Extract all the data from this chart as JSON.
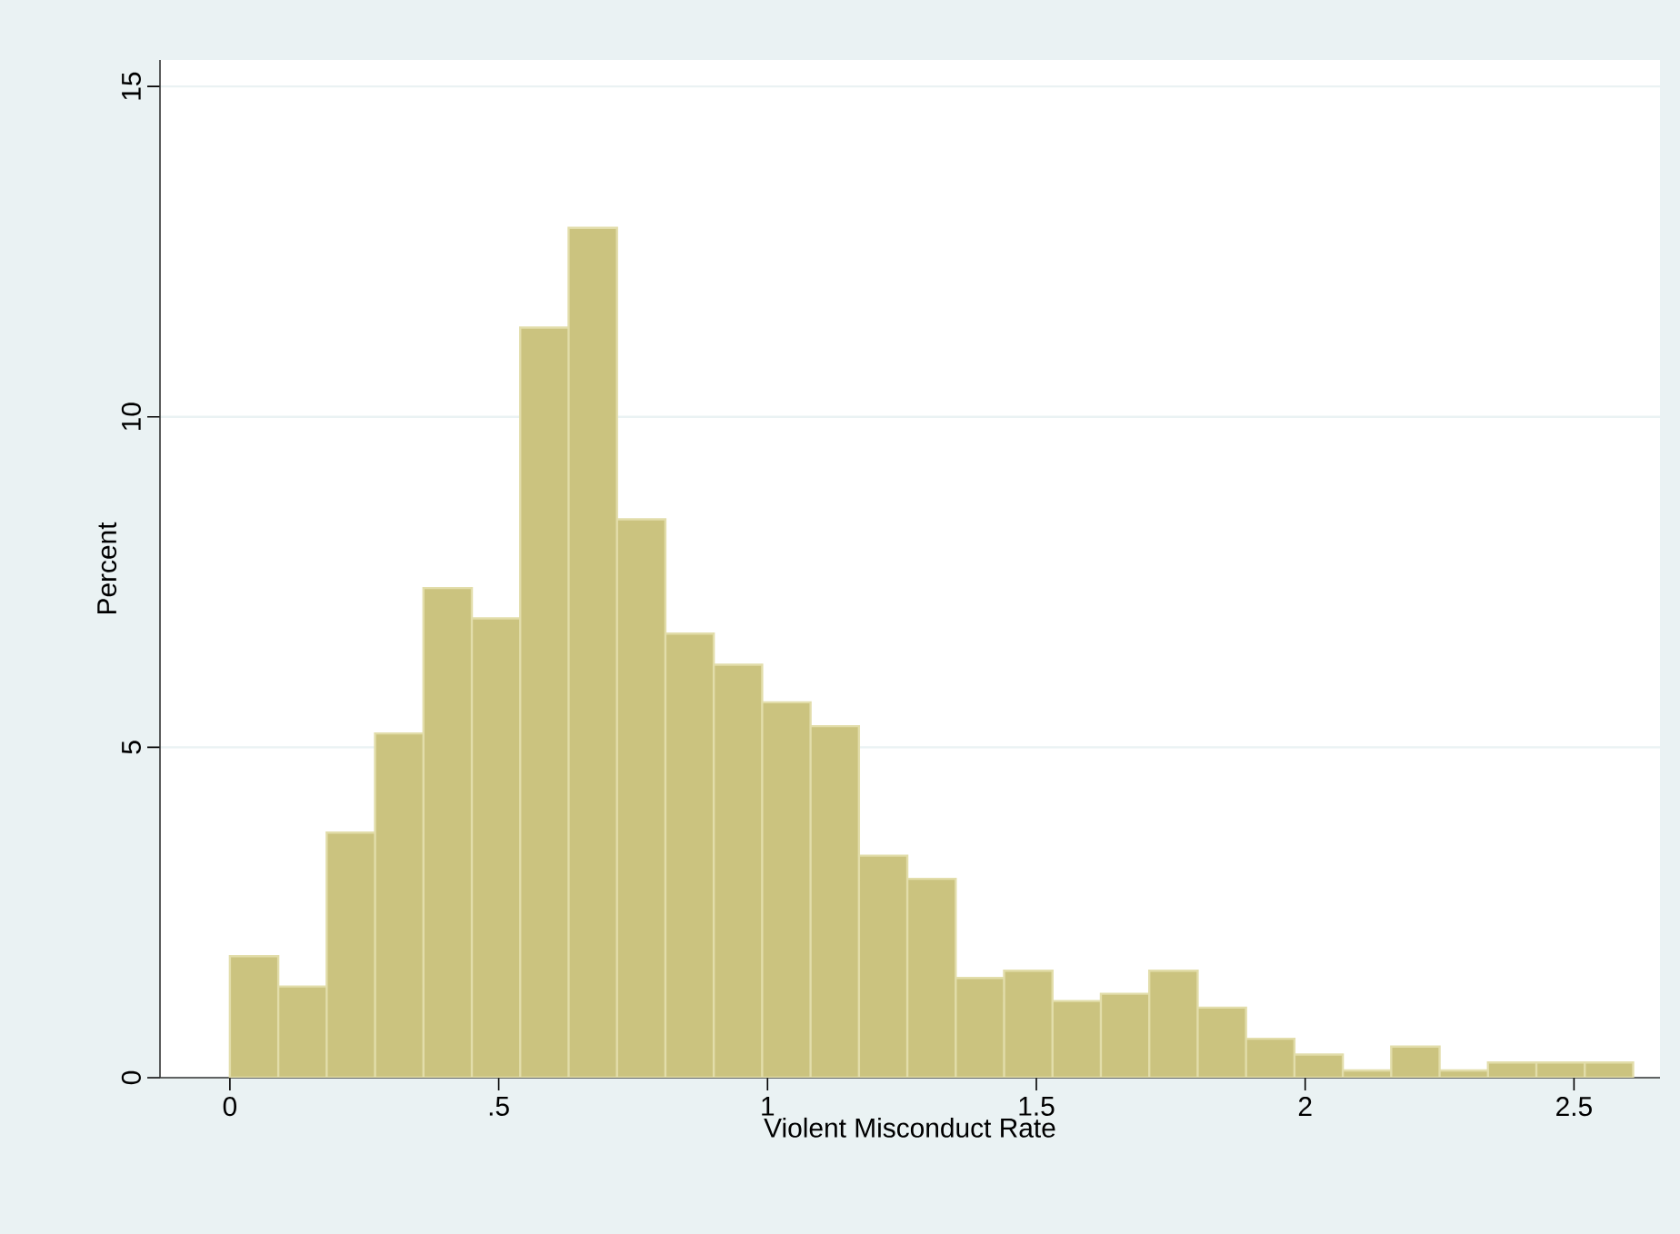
{
  "chart_data": {
    "type": "histogram",
    "xlabel": "Violent Misconduct Rate",
    "ylabel": "Percent",
    "bins": [
      0,
      0.09,
      0.18,
      0.27,
      0.36,
      0.45,
      0.54,
      0.63,
      0.72,
      0.81,
      0.9,
      0.99,
      1.08,
      1.17,
      1.26,
      1.35,
      1.44,
      1.53,
      1.62,
      1.71,
      1.8,
      1.89,
      1.98,
      2.07,
      2.16,
      2.25,
      2.34,
      2.43,
      2.52,
      2.61
    ],
    "values": [
      1.84,
      1.38,
      3.71,
      5.21,
      7.41,
      6.95,
      11.35,
      12.86,
      8.45,
      6.72,
      6.25,
      5.68,
      5.32,
      3.36,
      3.01,
      1.51,
      1.62,
      1.16,
      1.27,
      1.62,
      1.06,
      0.59,
      0.35,
      0.11,
      0.47,
      0.11,
      0.23,
      0.23,
      0.23
    ],
    "color": "#cbc37f",
    "xlim": [
      -0.13,
      2.66
    ],
    "ylim": [
      0,
      15.4
    ],
    "xticks": [
      0,
      {
        "value": 0.5,
        "label": ".5"
      },
      1,
      1.5,
      2,
      2.5
    ],
    "yticks": [
      0,
      5,
      10,
      15
    ],
    "grid": "y"
  }
}
